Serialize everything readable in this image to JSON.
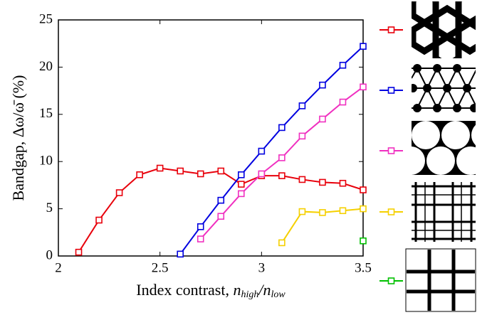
{
  "chart_data": {
    "type": "line",
    "xlabel_parts": [
      "Index contrast, ",
      "n",
      "high",
      "/n",
      "low"
    ],
    "ylabel": "Bandgap, Δω/ω̄ (%)",
    "xlim": [
      2,
      3.5
    ],
    "xticks": [
      2,
      2.5,
      3,
      3.5
    ],
    "ylim": [
      0,
      25
    ],
    "yticks": [
      0,
      5,
      10,
      15,
      20,
      25
    ],
    "series": [
      {
        "color": "#e8000b",
        "x": [
          2.1,
          2.2,
          2.3,
          2.4,
          2.5,
          2.6,
          2.7,
          2.8,
          2.9,
          3.0,
          3.1,
          3.2,
          3.3,
          3.4,
          3.5
        ],
        "values": [
          0.4,
          3.8,
          6.7,
          8.6,
          9.3,
          9.0,
          8.7,
          9.0,
          7.6,
          8.5,
          8.5,
          8.1,
          7.8,
          7.7,
          7.0
        ]
      },
      {
        "color": "#0000e0",
        "x": [
          2.6,
          2.7,
          2.8,
          2.9,
          3.0,
          3.1,
          3.2,
          3.3,
          3.4,
          3.5
        ],
        "values": [
          0.2,
          3.1,
          5.9,
          8.6,
          11.1,
          13.6,
          15.9,
          18.1,
          20.2,
          22.2
        ]
      },
      {
        "color": "#f030c0",
        "x": [
          2.7,
          2.8,
          2.9,
          3.0,
          3.1,
          3.2,
          3.3,
          3.4,
          3.5
        ],
        "values": [
          1.8,
          4.2,
          6.6,
          8.7,
          10.4,
          12.7,
          14.5,
          16.3,
          17.9
        ]
      },
      {
        "color": "#f5d000",
        "x": [
          3.1,
          3.2,
          3.3,
          3.4,
          3.5
        ],
        "values": [
          1.4,
          4.7,
          4.6,
          4.8,
          5.0
        ]
      },
      {
        "color": "#00c000",
        "x": [
          3.5
        ],
        "values": [
          1.6
        ]
      }
    ]
  }
}
